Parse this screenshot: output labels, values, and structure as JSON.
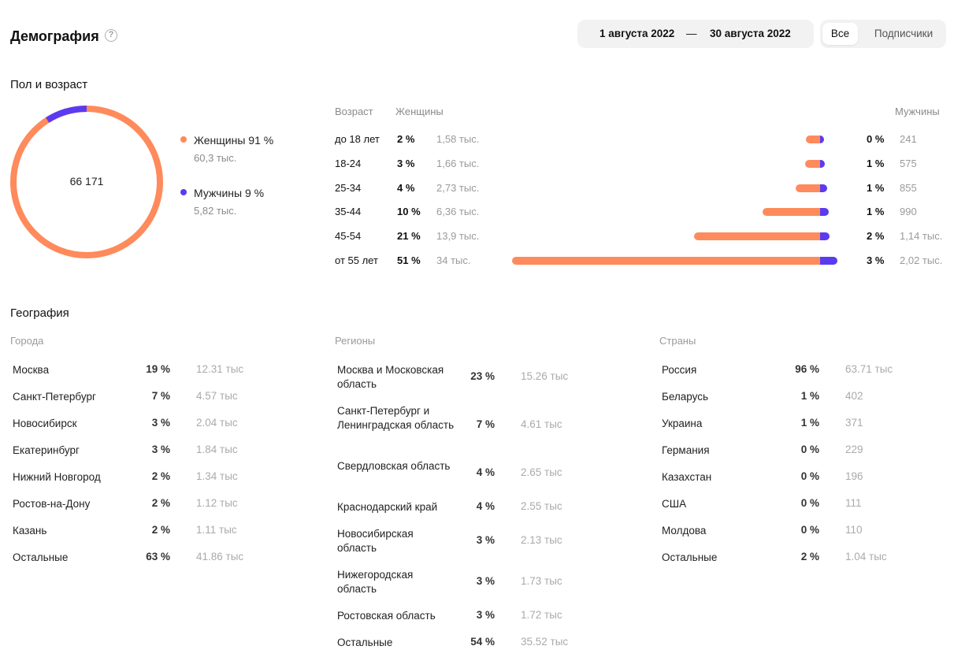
{
  "header": {
    "title": "Демография",
    "help_icon": "?",
    "date_from": "1 августа 2022",
    "date_sep": "—",
    "date_to": "30 августа 2022",
    "segments": [
      {
        "label": "Все",
        "active": true
      },
      {
        "label": "Подписчики",
        "active": false
      }
    ]
  },
  "gender_age": {
    "title": "Пол и возраст",
    "total": "66 171",
    "colors": {
      "women": "#ff8a5b",
      "men": "#5b3bf0"
    },
    "women_share": 0.91,
    "legend": [
      {
        "label": "Женщины 91 %",
        "sub": "60,3 тыс.",
        "color": "#ff8a5b"
      },
      {
        "label": "Мужчины 9 %",
        "sub": "5,82 тыс.",
        "color": "#5b3bf0"
      }
    ],
    "columns": {
      "age": "Возраст",
      "women": "Женщины",
      "men": "Мужчины"
    },
    "rows": [
      {
        "age": "до 18 лет",
        "w_pct": "2 %",
        "w_cnt": "1,58 тыс.",
        "m_pct": "0 %",
        "m_cnt": "241",
        "w_val": 1.58,
        "m_val": 0.241
      },
      {
        "age": "18-24",
        "w_pct": "3 %",
        "w_cnt": "1,66 тыс.",
        "m_pct": "1 %",
        "m_cnt": "575",
        "w_val": 1.66,
        "m_val": 0.575
      },
      {
        "age": "25-34",
        "w_pct": "4 %",
        "w_cnt": "2,73 тыс.",
        "m_pct": "1 %",
        "m_cnt": "855",
        "w_val": 2.73,
        "m_val": 0.855
      },
      {
        "age": "35-44",
        "w_pct": "10 %",
        "w_cnt": "6,36 тыс.",
        "m_pct": "1 %",
        "m_cnt": "990",
        "w_val": 6.36,
        "m_val": 0.99
      },
      {
        "age": "45-54",
        "w_pct": "21 %",
        "w_cnt": "13,9 тыс.",
        "m_pct": "2 %",
        "m_cnt": "1,14 тыс.",
        "w_val": 13.9,
        "m_val": 1.14
      },
      {
        "age": "от 55 лет",
        "w_pct": "51 %",
        "w_cnt": "34 тыс.",
        "m_pct": "3 %",
        "m_cnt": "2,02 тыс.",
        "w_val": 34,
        "m_val": 2.02
      }
    ]
  },
  "geography": {
    "title": "География",
    "cities": {
      "head": "Города",
      "rows": [
        {
          "name": "Москва",
          "pct": "19 %",
          "cnt": "12.31 тыс"
        },
        {
          "name": "Санкт-Петербург",
          "pct": "7 %",
          "cnt": "4.57 тыс"
        },
        {
          "name": "Новосибирск",
          "pct": "3 %",
          "cnt": "2.04 тыс"
        },
        {
          "name": "Екатеринбург",
          "pct": "3 %",
          "cnt": "1.84 тыс"
        },
        {
          "name": "Нижний Новгород",
          "pct": "2 %",
          "cnt": "1.34 тыс"
        },
        {
          "name": "Ростов-на-Дону",
          "pct": "2 %",
          "cnt": "1.12 тыс"
        },
        {
          "name": "Казань",
          "pct": "2 %",
          "cnt": "1.11 тыс"
        },
        {
          "name": "Остальные",
          "pct": "63 %",
          "cnt": "41.86 тыс"
        }
      ]
    },
    "regions": {
      "head": "Регионы",
      "rows": [
        {
          "name": "Москва и Московская область",
          "pct": "23 %",
          "cnt": "15.26 тыс"
        },
        {
          "name": "Санкт-Петербург и Ленинградская область",
          "pct": "7 %",
          "cnt": "4.61 тыс"
        },
        {
          "name": "Свердловская область",
          "pct": "4 %",
          "cnt": "2.65 тыс"
        },
        {
          "name": "Краснодарский край",
          "pct": "4 %",
          "cnt": "2.55 тыс"
        },
        {
          "name": "Новосибирская область",
          "pct": "3 %",
          "cnt": "2.13 тыс"
        },
        {
          "name": "Нижегородская область",
          "pct": "3 %",
          "cnt": "1.73 тыс"
        },
        {
          "name": "Ростовская область",
          "pct": "3 %",
          "cnt": "1.72 тыс"
        },
        {
          "name": "Остальные",
          "pct": "54 %",
          "cnt": "35.52 тыс"
        }
      ]
    },
    "countries": {
      "head": "Страны",
      "rows": [
        {
          "name": "Россия",
          "pct": "96 %",
          "cnt": "63.71 тыс"
        },
        {
          "name": "Беларусь",
          "pct": "1 %",
          "cnt": "402"
        },
        {
          "name": "Украина",
          "pct": "1 %",
          "cnt": "371"
        },
        {
          "name": "Германия",
          "pct": "0 %",
          "cnt": "229"
        },
        {
          "name": "Казахстан",
          "pct": "0 %",
          "cnt": "196"
        },
        {
          "name": "США",
          "pct": "0 %",
          "cnt": "111"
        },
        {
          "name": "Молдова",
          "pct": "0 %",
          "cnt": "110"
        },
        {
          "name": "Остальные",
          "pct": "2 %",
          "cnt": "1.04 тыс"
        }
      ]
    }
  }
}
